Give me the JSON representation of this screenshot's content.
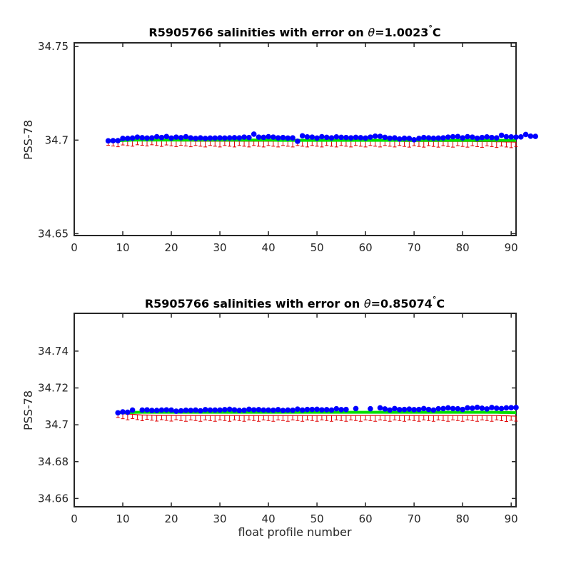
{
  "chart_data": [
    {
      "type": "scatter",
      "title_prefix": "R5905766 salinities with error on ",
      "title_symbol": "θ",
      "title_value": "=1.0023",
      "title_degree": "°",
      "title_unit": "C",
      "xlabel": "",
      "ylabel": "PSS-78",
      "xlim": [
        0,
        91
      ],
      "ylim": [
        34.649,
        34.752
      ],
      "xticks": [
        "0",
        "10",
        "20",
        "30",
        "40",
        "50",
        "60",
        "70",
        "80",
        "90"
      ],
      "yticks": [
        "34.65",
        "34.7",
        "34.75"
      ],
      "grid": false,
      "x_start": 7,
      "series": [
        {
          "role": "error_band",
          "color": "#e00000",
          "values": [
            34.6995,
            34.6995,
            34.6995,
            34.6997,
            34.6997,
            34.6998,
            34.6998,
            34.6999,
            34.6999,
            34.6998,
            34.6998,
            34.6997,
            34.6997,
            34.6996,
            34.6996,
            34.6995,
            34.6995,
            34.6995,
            34.6994,
            34.6994,
            34.6994,
            34.6994,
            34.6994,
            34.6994,
            34.6994,
            34.6994,
            34.6994,
            34.6994,
            34.6994,
            34.6994,
            34.6994,
            34.6994,
            34.6994,
            34.6994,
            34.6994,
            34.6994,
            34.6994,
            34.6994,
            34.6994,
            34.6994,
            34.6994,
            34.6994,
            34.6994,
            34.6994,
            34.6994,
            34.6994,
            34.6994,
            34.6994,
            34.6994,
            34.6994,
            34.6994,
            34.6994,
            34.6994,
            34.6994,
            34.6994,
            34.6994,
            34.6994,
            34.6994,
            34.6994,
            34.6994,
            34.6994,
            34.6993,
            34.6993,
            34.6993,
            34.6993,
            34.6993,
            34.6993,
            34.6993,
            34.6993,
            34.6993,
            34.6993,
            34.6993,
            34.6993,
            34.6993,
            34.6993,
            34.6993,
            34.6992,
            34.6992,
            34.6992,
            34.6992,
            34.6991,
            34.6991,
            34.699,
            34.699,
            34.6989
          ]
        },
        {
          "role": "mapped",
          "color": "#00e000",
          "values": [
            34.6995,
            34.6996,
            34.6997,
            34.6998,
            34.6999,
            34.7,
            34.7,
            34.7,
            34.7,
            34.7,
            34.7,
            34.7,
            34.7,
            34.7,
            34.7,
            34.7,
            34.7,
            34.7,
            34.7,
            34.7,
            34.7,
            34.7,
            34.7,
            34.7,
            34.7,
            34.7,
            34.7,
            34.7,
            34.7,
            34.7,
            34.7,
            34.7,
            34.7,
            34.7,
            34.7,
            34.6999,
            34.6999,
            34.6999,
            34.6999,
            34.6999,
            34.6999,
            34.6999,
            34.6999,
            34.6999,
            34.6999,
            34.6999,
            34.6999,
            34.6999,
            34.6999,
            34.6999,
            34.6999,
            34.6999,
            34.6999,
            34.6999,
            34.6999,
            34.6999,
            34.6999,
            34.6999,
            34.6999,
            34.6999,
            34.6999,
            34.6999,
            34.6999,
            34.6999,
            34.6999,
            34.6999,
            34.6999,
            34.6999,
            34.6999,
            34.6999,
            34.6999,
            34.6999,
            34.6999,
            34.6999,
            34.6999,
            34.6999,
            34.6999,
            34.6999,
            34.6999,
            34.6999,
            34.6999,
            34.6999,
            34.6999,
            34.6999,
            34.6999
          ]
        },
        {
          "role": "float",
          "color": "#0000ff",
          "values": [
            34.6996,
            34.6997,
            34.6997,
            34.7009,
            34.7009,
            34.7011,
            34.7016,
            34.7013,
            34.7011,
            34.7012,
            34.7018,
            34.7014,
            34.7019,
            34.7011,
            34.7016,
            34.7013,
            34.7018,
            34.7012,
            34.7009,
            34.7012,
            34.7009,
            34.7011,
            34.7011,
            34.7012,
            34.7011,
            34.7012,
            34.7013,
            34.7012,
            34.7016,
            34.7014,
            34.7032,
            34.7016,
            34.7015,
            34.7018,
            34.7016,
            34.7012,
            34.7014,
            34.7011,
            34.7012,
            34.6994,
            34.7023,
            34.7017,
            34.7016,
            34.7011,
            34.7018,
            34.7015,
            34.7012,
            34.7017,
            34.7015,
            34.7014,
            34.7012,
            34.7015,
            34.7013,
            34.7011,
            34.7016,
            34.7021,
            34.702,
            34.7015,
            34.701,
            34.7012,
            34.7006,
            34.701,
            34.7009,
            34.7002,
            34.7009,
            34.7014,
            34.7012,
            34.701,
            34.7011,
            34.7012,
            34.7016,
            34.7018,
            34.7019,
            34.7012,
            34.7018,
            34.7016,
            34.701,
            34.7014,
            34.7017,
            34.7014,
            34.7012,
            34.7026,
            34.7018,
            34.7017,
            34.7016,
            34.7017,
            34.703,
            34.7021,
            34.702
          ]
        }
      ]
    },
    {
      "type": "scatter",
      "title_prefix": "R5905766 salinities with error on ",
      "title_symbol": "θ",
      "title_value": "=0.85074",
      "title_degree": "°",
      "title_unit": "C",
      "xlabel": "float profile number",
      "ylabel": "PSS-78",
      "xlim": [
        0,
        91
      ],
      "ylim": [
        34.6555,
        34.7605
      ],
      "xticks": [
        "0",
        "10",
        "20",
        "30",
        "40",
        "50",
        "60",
        "70",
        "80",
        "90"
      ],
      "yticks": [
        "34.66",
        "34.68",
        "34.7",
        "34.72",
        "34.74"
      ],
      "grid": false,
      "x_start": 9,
      "series": [
        {
          "role": "error_band",
          "color": "#e00000",
          "values": [
            34.7063,
            34.706,
            34.7058,
            34.7057,
            34.7055,
            34.7053,
            34.7053,
            34.7052,
            34.7051,
            34.7051,
            34.7051,
            34.7051,
            34.7051,
            34.705,
            34.705,
            34.705,
            34.705,
            34.705,
            34.705,
            34.705,
            34.705,
            34.705,
            34.705,
            34.705,
            34.705,
            34.705,
            34.705,
            34.705,
            34.705,
            34.705,
            34.705,
            34.705,
            34.705,
            34.705,
            34.705,
            34.705,
            34.705,
            34.705,
            34.705,
            34.705,
            34.705,
            34.705,
            34.705,
            34.705,
            34.705,
            34.705,
            34.705,
            34.705,
            34.705,
            34.705,
            34.705,
            34.705,
            34.705,
            34.705,
            34.705,
            34.705,
            34.705,
            34.705,
            34.705,
            34.705,
            34.705,
            34.705,
            34.705,
            34.705,
            34.705,
            34.705,
            34.705,
            34.705,
            34.705,
            34.705,
            34.705,
            34.705,
            34.705,
            34.705,
            34.705,
            34.705,
            34.705,
            34.705,
            34.705,
            34.7049,
            34.7049,
            34.7048,
            34.7047
          ]
        },
        {
          "role": "mapped",
          "color": "#00e000",
          "values": [
            34.7065,
            34.7066,
            34.7067,
            34.7067,
            34.7068,
            34.7068,
            34.7068,
            34.7068,
            34.7068,
            34.7068,
            34.7068,
            34.7068,
            34.7068,
            34.7068,
            34.7068,
            34.7068,
            34.7068,
            34.7068,
            34.7068,
            34.7068,
            34.7068,
            34.7068,
            34.7068,
            34.7068,
            34.7068,
            34.7068,
            34.7068,
            34.7068,
            34.7068,
            34.7068,
            34.7068,
            34.7068,
            34.7068,
            34.7068,
            34.7068,
            34.7068,
            34.7068,
            34.7068,
            34.7068,
            34.7068,
            34.7068,
            34.7068,
            34.7068,
            34.7068,
            34.7068,
            34.7068,
            34.7068,
            34.7068,
            34.7068,
            34.7068,
            34.7068,
            34.7068,
            34.7068,
            34.7068,
            34.7068,
            34.7068,
            34.7068,
            34.7068,
            34.7068,
            34.7068,
            34.7068,
            34.7068,
            34.7068,
            34.7068,
            34.7068,
            34.7068,
            34.7068,
            34.7068,
            34.7068,
            34.7068,
            34.7068,
            34.7068,
            34.7068,
            34.7068,
            34.7068,
            34.7068,
            34.7068,
            34.7068,
            34.7068,
            34.7067,
            34.7067,
            34.7066,
            34.7066
          ]
        },
        {
          "role": "float",
          "color": "#0000ff",
          "values": [
            34.7065,
            34.707,
            34.7068,
            34.708,
            null,
            34.708,
            34.7081,
            34.7078,
            34.7078,
            34.708,
            34.7081,
            34.708,
            34.7074,
            34.7076,
            34.7079,
            34.7078,
            34.708,
            34.7076,
            34.7082,
            34.708,
            34.708,
            34.708,
            34.7082,
            34.7084,
            34.7081,
            34.7078,
            34.7079,
            34.7084,
            34.7081,
            34.7082,
            34.708,
            34.708,
            34.7079,
            34.7082,
            34.7078,
            34.708,
            34.7079,
            34.7085,
            34.708,
            34.7083,
            34.7083,
            34.7084,
            34.7081,
            34.7082,
            34.708,
            34.7087,
            34.7082,
            34.7083,
            null,
            34.7088,
            null,
            null,
            34.7087,
            null,
            34.7092,
            34.7086,
            34.708,
            34.7088,
            34.7082,
            34.7083,
            34.7085,
            34.7082,
            34.7083,
            34.7088,
            34.7083,
            34.708,
            34.7087,
            34.7088,
            34.7092,
            34.7088,
            34.7087,
            34.7083,
            34.7092,
            34.709,
            34.7095,
            34.709,
            34.7086,
            34.7094,
            34.709,
            34.7088,
            34.7092,
            34.7093,
            34.7094
          ]
        }
      ]
    }
  ]
}
